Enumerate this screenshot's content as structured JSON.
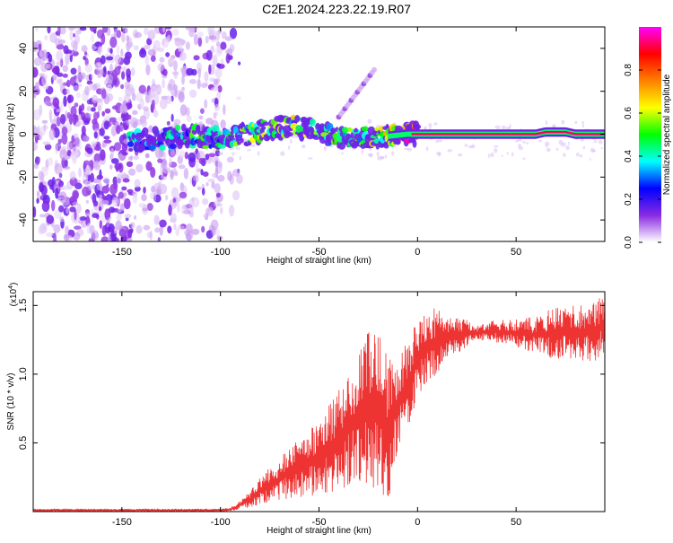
{
  "title": "C2E1.2024.223.22.19.R07",
  "chart_data": [
    {
      "type": "heatmap",
      "xlabel": "Height of straight line (km)",
      "ylabel": "Frequency (Hz)",
      "xlim": [
        -195,
        95
      ],
      "ylim": [
        -50,
        50
      ],
      "xticks": [
        -150,
        -100,
        -50,
        0,
        50
      ],
      "yticks": [
        -40,
        -20,
        0,
        20,
        40
      ],
      "colorbar": {
        "label": "Normalized spectral amplitude",
        "range": [
          0.0,
          1.0
        ],
        "ticks": [
          "0.0",
          "0.2",
          "0.4",
          "0.6",
          "0.8"
        ],
        "colormap": [
          "#ffffff",
          "#8a2be2",
          "#0000ff",
          "#00ffff",
          "#00ff00",
          "#ffff00",
          "#ff8000",
          "#ff0000",
          "#ff00ff"
        ]
      },
      "ridge": {
        "x": [
          -145,
          -130,
          -115,
          -100,
          -85,
          -75,
          -65,
          -55,
          -45,
          -35,
          -25,
          -15,
          -5,
          0,
          10,
          20,
          30,
          40,
          50,
          60,
          65,
          75,
          80,
          90,
          95
        ],
        "frequency": [
          -3,
          -2,
          -1,
          -2,
          0,
          2,
          4,
          2,
          0,
          -2,
          -2,
          -1,
          0,
          0,
          0,
          0,
          0,
          0,
          0,
          0,
          1,
          1,
          0,
          0,
          0
        ],
        "amplitude": [
          0.3,
          0.3,
          0.35,
          0.35,
          0.45,
          0.5,
          0.5,
          0.45,
          0.4,
          0.4,
          0.45,
          0.55,
          0.8,
          0.9,
          0.9,
          0.92,
          0.92,
          0.92,
          0.92,
          0.95,
          0.95,
          0.95,
          0.92,
          0.9,
          0.88
        ]
      },
      "noise_region_x": [
        -195,
        -100
      ],
      "secondary_trace": {
        "x": [
          -40,
          -22
        ],
        "frequency": [
          8,
          30
        ]
      }
    },
    {
      "type": "line",
      "xlabel": "Height of straight line (km)",
      "ylabel": "SNR (10 * v/v)",
      "y_scale_label": "(x10",
      "y_scale_exponent": "4",
      "xlim": [
        -195,
        95
      ],
      "ylim": [
        0.0,
        1.6
      ],
      "xticks": [
        -150,
        -100,
        -50,
        0,
        50
      ],
      "yticks": [
        0.5,
        1.0,
        1.5
      ],
      "color": "#ee3333",
      "envelope": {
        "x": [
          -195,
          -160,
          -120,
          -100,
          -95,
          -90,
          -85,
          -80,
          -70,
          -60,
          -50,
          -40,
          -30,
          -25,
          -20,
          -15,
          -10,
          -5,
          0,
          5,
          10,
          15,
          20,
          25,
          30,
          40,
          50,
          60,
          70,
          80,
          90,
          95
        ],
        "low": [
          0.0,
          0.0,
          0.0,
          0.0,
          0.0,
          0.02,
          0.03,
          0.05,
          0.08,
          0.1,
          0.12,
          0.15,
          0.2,
          0.2,
          0.1,
          0.05,
          0.45,
          0.6,
          0.8,
          0.95,
          1.0,
          1.1,
          1.15,
          1.2,
          1.25,
          1.22,
          1.2,
          1.15,
          1.1,
          1.1,
          1.08,
          1.15
        ],
        "high": [
          0.02,
          0.02,
          0.02,
          0.02,
          0.03,
          0.08,
          0.15,
          0.25,
          0.4,
          0.55,
          0.65,
          0.9,
          1.2,
          1.35,
          1.3,
          1.15,
          1.1,
          1.25,
          1.4,
          1.45,
          1.5,
          1.4,
          1.42,
          1.4,
          1.35,
          1.4,
          1.4,
          1.42,
          1.5,
          1.5,
          1.55,
          1.6
        ]
      }
    }
  ]
}
